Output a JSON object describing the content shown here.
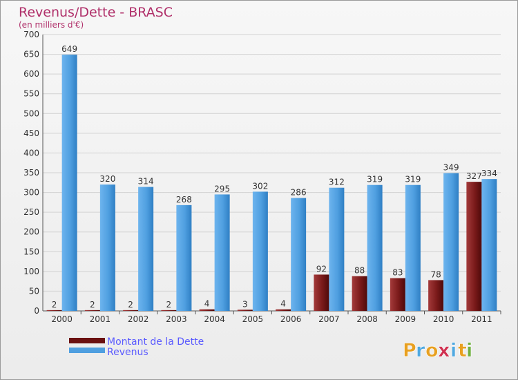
{
  "chart_data": {
    "type": "bar",
    "title": "Revenus/Dette - BRASC",
    "subtitle": "(en milliers d'€)",
    "categories": [
      "2000",
      "2001",
      "2002",
      "2003",
      "2004",
      "2005",
      "2006",
      "2007",
      "2008",
      "2009",
      "2010",
      "2011"
    ],
    "series": [
      {
        "name": "Montant de la Dette",
        "color": "#7a1a1a",
        "values": [
          2,
          2,
          2,
          2,
          4,
          3,
          4,
          92,
          88,
          83,
          78,
          327
        ]
      },
      {
        "name": "Revenus",
        "color": "#4f9fe0",
        "values": [
          649,
          320,
          314,
          268,
          295,
          302,
          286,
          312,
          319,
          319,
          349,
          334
        ]
      }
    ],
    "ylim": [
      0,
      700
    ],
    "yticks": [
      0,
      50,
      100,
      150,
      200,
      250,
      300,
      350,
      400,
      450,
      500,
      550,
      600,
      650,
      700
    ],
    "grid": true,
    "legend": "bottom-left"
  },
  "logo": {
    "letters": [
      "P",
      "r",
      "o",
      "x",
      "i",
      "t",
      "i"
    ],
    "colors": [
      "#e8a020",
      "#4fa8e0",
      "#e8a020",
      "#d03050",
      "#4fa8e0",
      "#e8a020",
      "#70b040"
    ]
  }
}
